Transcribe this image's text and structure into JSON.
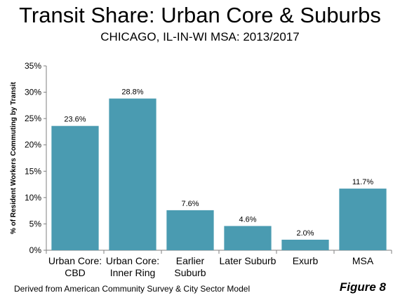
{
  "header": {
    "title": "Transit Share: Urban Core & Suburbs",
    "subtitle": "CHICAGO, IL-IN-WI MSA: 2013/2017"
  },
  "footer": {
    "source": "Derived from American Community Survey & City Sector Model",
    "figure_label": "Figure 8"
  },
  "chart_data": {
    "type": "bar",
    "categories": [
      [
        "Urban Core:",
        "CBD"
      ],
      [
        "Urban Core:",
        "Inner Ring"
      ],
      [
        "Earlier",
        "Suburb"
      ],
      [
        "Later Suburb"
      ],
      [
        "Exurb"
      ],
      [
        "MSA"
      ]
    ],
    "values": [
      23.6,
      28.8,
      7.6,
      4.6,
      2.0,
      11.7
    ],
    "data_labels": [
      "23.6%",
      "28.8%",
      "7.6%",
      "4.6%",
      "2.0%",
      "11.7%"
    ],
    "ylabel": "% of Resident Workers Commuting by Transit",
    "ylim": [
      0,
      35
    ],
    "yticks": [
      0,
      5,
      10,
      15,
      20,
      25,
      30,
      35
    ],
    "ytick_labels": [
      "0%",
      "5%",
      "10%",
      "15%",
      "20%",
      "25%",
      "30%",
      "35%"
    ],
    "grid": false,
    "legend": "none",
    "bar_color": "#4a9bb1"
  }
}
